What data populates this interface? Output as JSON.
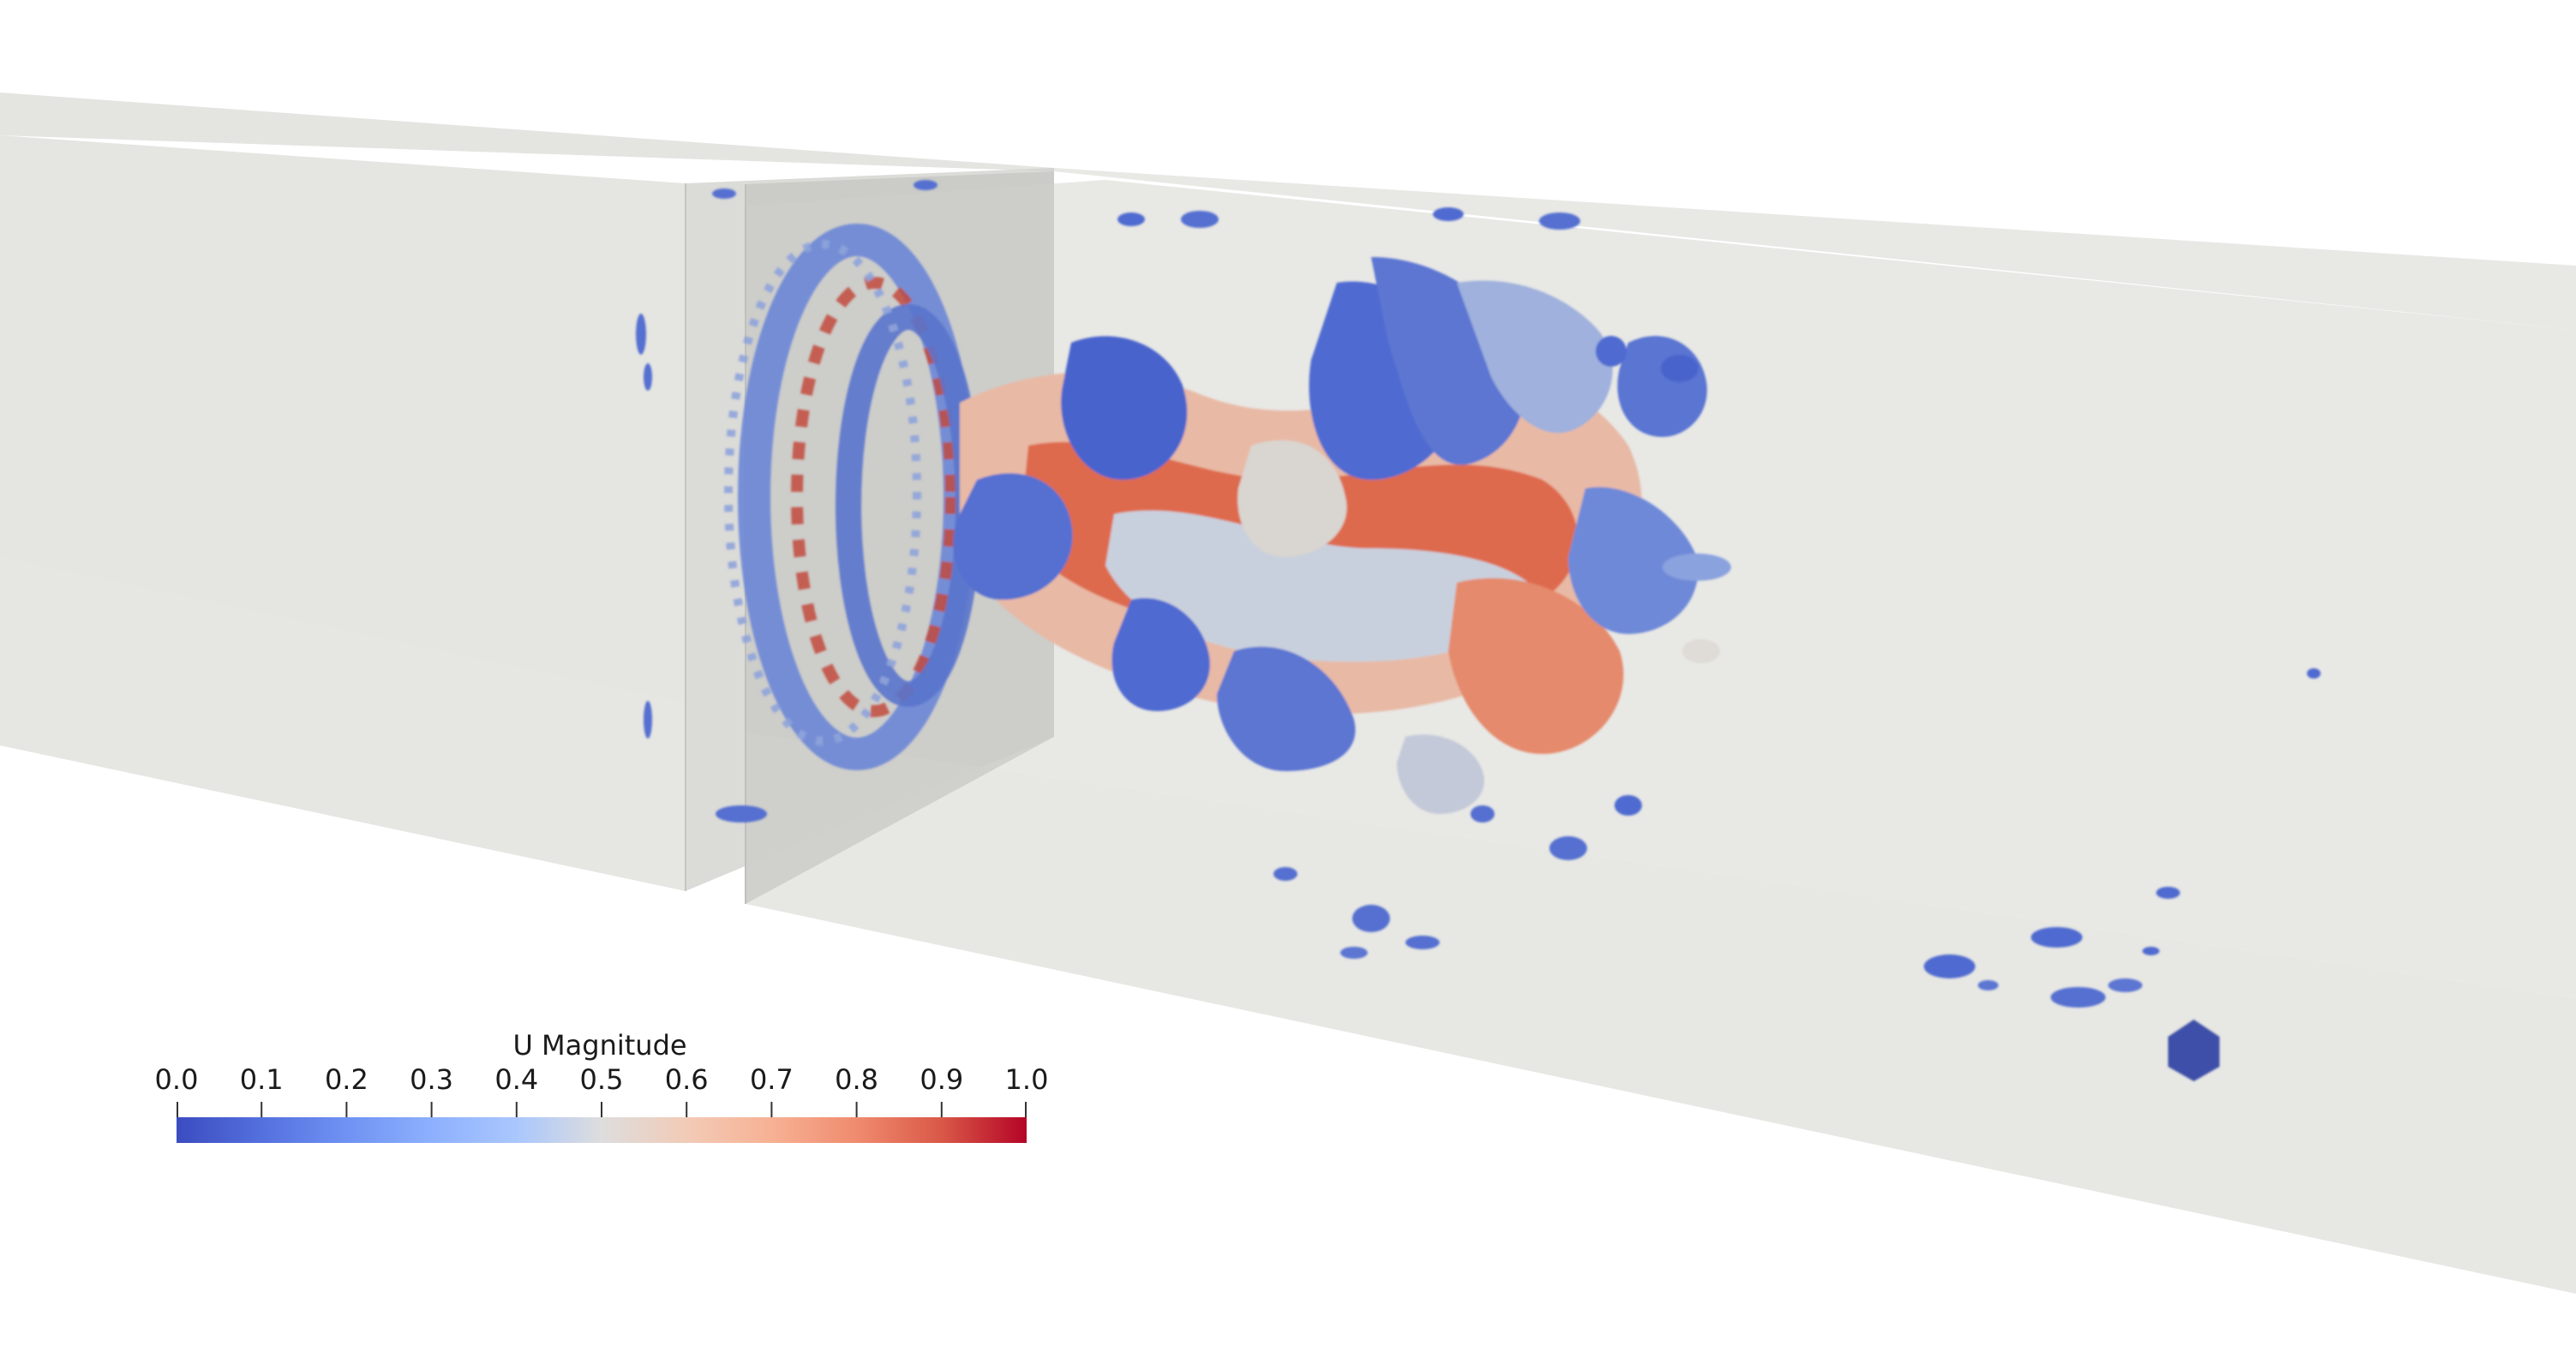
{
  "viewport": {
    "background_color": "#ffffff",
    "domain_box_color": "#dcdcd8",
    "palette": {
      "cool": "#3b4cc0",
      "neutral": "#dddddd",
      "warm": "#b40426"
    }
  },
  "colorbar": {
    "title": "U Magnitude",
    "colormap": "coolwarm",
    "range": [
      0.0,
      1.0
    ],
    "ticks": [
      {
        "value": 0.0,
        "label": "0.0"
      },
      {
        "value": 0.1,
        "label": "0.1"
      },
      {
        "value": 0.2,
        "label": "0.2"
      },
      {
        "value": 0.3,
        "label": "0.3"
      },
      {
        "value": 0.4,
        "label": "0.4"
      },
      {
        "value": 0.5,
        "label": "0.5"
      },
      {
        "value": 0.6,
        "label": "0.6"
      },
      {
        "value": 0.7,
        "label": "0.7"
      },
      {
        "value": 0.8,
        "label": "0.8"
      },
      {
        "value": 0.9,
        "label": "0.9"
      },
      {
        "value": 1.0,
        "label": "1.0"
      }
    ]
  }
}
